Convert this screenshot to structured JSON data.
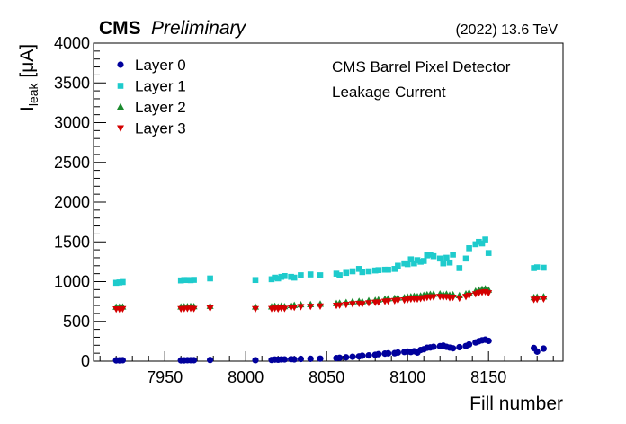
{
  "header": {
    "experiment": "CMS",
    "status": "Preliminary",
    "energy": "(2022) 13.6 TeV"
  },
  "annotations": {
    "line1": "CMS Barrel Pixel Detector",
    "line2": "Leakage Current"
  },
  "colors": {
    "layer0": "#00009c",
    "layer1": "#1ecbcc",
    "layer2": "#1b8a2e",
    "layer3": "#d40000"
  },
  "chart_data": {
    "type": "scatter",
    "xlabel": "Fill number",
    "ylabel_main": "I",
    "ylabel_sub": "leak",
    "ylabel_unit": " [μA]",
    "xlim": [
      7906,
      8196
    ],
    "ylim": [
      0,
      4000
    ],
    "xticks": [
      7950,
      8000,
      8050,
      8100,
      8150
    ],
    "yticks": [
      0,
      500,
      1000,
      1500,
      2000,
      2500,
      3000,
      3500,
      4000
    ],
    "legend_position": "top-left",
    "series": [
      {
        "name": "Layer 0",
        "marker": "circle",
        "points": [
          [
            7920,
            10
          ],
          [
            7922,
            10
          ],
          [
            7924,
            12
          ],
          [
            7960,
            10
          ],
          [
            7962,
            10
          ],
          [
            7964,
            12
          ],
          [
            7966,
            12
          ],
          [
            7968,
            12
          ],
          [
            7978,
            14
          ],
          [
            8006,
            12
          ],
          [
            8016,
            15
          ],
          [
            8018,
            20
          ],
          [
            8020,
            18
          ],
          [
            8022,
            22
          ],
          [
            8024,
            22
          ],
          [
            8028,
            25
          ],
          [
            8030,
            22
          ],
          [
            8034,
            28
          ],
          [
            8040,
            30
          ],
          [
            8046,
            32
          ],
          [
            8056,
            38
          ],
          [
            8058,
            42
          ],
          [
            8062,
            48
          ],
          [
            8066,
            55
          ],
          [
            8070,
            60
          ],
          [
            8072,
            68
          ],
          [
            8076,
            72
          ],
          [
            8080,
            80
          ],
          [
            8082,
            88
          ],
          [
            8086,
            95
          ],
          [
            8088,
            98
          ],
          [
            8092,
            100
          ],
          [
            8094,
            108
          ],
          [
            8098,
            115
          ],
          [
            8100,
            120
          ],
          [
            8102,
            115
          ],
          [
            8104,
            125
          ],
          [
            8106,
            108
          ],
          [
            8108,
            140
          ],
          [
            8110,
            150
          ],
          [
            8112,
            168
          ],
          [
            8114,
            172
          ],
          [
            8116,
            180
          ],
          [
            8120,
            188
          ],
          [
            8122,
            195
          ],
          [
            8124,
            180
          ],
          [
            8126,
            170
          ],
          [
            8128,
            162
          ],
          [
            8132,
            175
          ],
          [
            8136,
            190
          ],
          [
            8138,
            210
          ],
          [
            8142,
            235
          ],
          [
            8144,
            250
          ],
          [
            8146,
            262
          ],
          [
            8148,
            270
          ],
          [
            8150,
            255
          ],
          [
            8178,
            165
          ],
          [
            8180,
            120
          ],
          [
            8184,
            158
          ]
        ]
      },
      {
        "name": "Layer 1",
        "marker": "square",
        "points": [
          [
            7920,
            985
          ],
          [
            7922,
            990
          ],
          [
            7924,
            995
          ],
          [
            7960,
            1015
          ],
          [
            7962,
            1020
          ],
          [
            7964,
            1020
          ],
          [
            7966,
            1018
          ],
          [
            7968,
            1022
          ],
          [
            7978,
            1040
          ],
          [
            8006,
            1020
          ],
          [
            8016,
            1030
          ],
          [
            8018,
            1050
          ],
          [
            8020,
            1040
          ],
          [
            8022,
            1060
          ],
          [
            8024,
            1070
          ],
          [
            8028,
            1060
          ],
          [
            8030,
            1050
          ],
          [
            8034,
            1080
          ],
          [
            8040,
            1090
          ],
          [
            8046,
            1080
          ],
          [
            8056,
            1100
          ],
          [
            8058,
            1080
          ],
          [
            8062,
            1110
          ],
          [
            8066,
            1130
          ],
          [
            8070,
            1160
          ],
          [
            8072,
            1120
          ],
          [
            8076,
            1130
          ],
          [
            8080,
            1140
          ],
          [
            8082,
            1145
          ],
          [
            8086,
            1150
          ],
          [
            8088,
            1150
          ],
          [
            8092,
            1160
          ],
          [
            8094,
            1200
          ],
          [
            8098,
            1230
          ],
          [
            8100,
            1220
          ],
          [
            8102,
            1280
          ],
          [
            8104,
            1230
          ],
          [
            8106,
            1270
          ],
          [
            8108,
            1250
          ],
          [
            8110,
            1260
          ],
          [
            8112,
            1330
          ],
          [
            8114,
            1340
          ],
          [
            8116,
            1320
          ],
          [
            8120,
            1290
          ],
          [
            8122,
            1230
          ],
          [
            8124,
            1300
          ],
          [
            8126,
            1240
          ],
          [
            8128,
            1340
          ],
          [
            8132,
            1170
          ],
          [
            8136,
            1290
          ],
          [
            8138,
            1420
          ],
          [
            8142,
            1470
          ],
          [
            8144,
            1500
          ],
          [
            8146,
            1480
          ],
          [
            8148,
            1530
          ],
          [
            8150,
            1360
          ],
          [
            8178,
            1170
          ],
          [
            8180,
            1180
          ],
          [
            8184,
            1175
          ]
        ]
      },
      {
        "name": "Layer 2",
        "marker": "triangle-up",
        "points": [
          [
            7920,
            680
          ],
          [
            7922,
            680
          ],
          [
            7924,
            682
          ],
          [
            7960,
            682
          ],
          [
            7962,
            684
          ],
          [
            7964,
            686
          ],
          [
            7966,
            688
          ],
          [
            7968,
            686
          ],
          [
            7978,
            690
          ],
          [
            8006,
            682
          ],
          [
            8016,
            684
          ],
          [
            8018,
            690
          ],
          [
            8020,
            682
          ],
          [
            8022,
            692
          ],
          [
            8024,
            686
          ],
          [
            8028,
            700
          ],
          [
            8030,
            702
          ],
          [
            8034,
            710
          ],
          [
            8040,
            712
          ],
          [
            8046,
            718
          ],
          [
            8056,
            725
          ],
          [
            8058,
            730
          ],
          [
            8062,
            738
          ],
          [
            8066,
            748
          ],
          [
            8070,
            752
          ],
          [
            8072,
            748
          ],
          [
            8076,
            760
          ],
          [
            8080,
            765
          ],
          [
            8082,
            770
          ],
          [
            8086,
            780
          ],
          [
            8088,
            785
          ],
          [
            8092,
            790
          ],
          [
            8094,
            795
          ],
          [
            8098,
            798
          ],
          [
            8100,
            805
          ],
          [
            8102,
            810
          ],
          [
            8104,
            815
          ],
          [
            8106,
            812
          ],
          [
            8108,
            820
          ],
          [
            8110,
            828
          ],
          [
            8112,
            835
          ],
          [
            8114,
            840
          ],
          [
            8116,
            842
          ],
          [
            8120,
            845
          ],
          [
            8122,
            838
          ],
          [
            8124,
            842
          ],
          [
            8126,
            830
          ],
          [
            8128,
            835
          ],
          [
            8132,
            825
          ],
          [
            8136,
            845
          ],
          [
            8138,
            860
          ],
          [
            8142,
            880
          ],
          [
            8144,
            895
          ],
          [
            8146,
            905
          ],
          [
            8148,
            910
          ],
          [
            8150,
            895
          ],
          [
            8178,
            800
          ],
          [
            8180,
            805
          ],
          [
            8184,
            810
          ]
        ]
      },
      {
        "name": "Layer 3",
        "marker": "triangle-down",
        "points": [
          [
            7920,
            655
          ],
          [
            7922,
            655
          ],
          [
            7924,
            658
          ],
          [
            7960,
            658
          ],
          [
            7962,
            660
          ],
          [
            7964,
            662
          ],
          [
            7966,
            664
          ],
          [
            7968,
            660
          ],
          [
            7978,
            666
          ],
          [
            8006,
            658
          ],
          [
            8016,
            660
          ],
          [
            8018,
            665
          ],
          [
            8020,
            658
          ],
          [
            8022,
            668
          ],
          [
            8024,
            662
          ],
          [
            8028,
            675
          ],
          [
            8030,
            678
          ],
          [
            8034,
            685
          ],
          [
            8040,
            688
          ],
          [
            8046,
            692
          ],
          [
            8056,
            700
          ],
          [
            8058,
            704
          ],
          [
            8062,
            712
          ],
          [
            8066,
            720
          ],
          [
            8070,
            725
          ],
          [
            8072,
            720
          ],
          [
            8076,
            732
          ],
          [
            8080,
            738
          ],
          [
            8082,
            742
          ],
          [
            8086,
            752
          ],
          [
            8088,
            756
          ],
          [
            8092,
            760
          ],
          [
            8094,
            765
          ],
          [
            8098,
            768
          ],
          [
            8100,
            775
          ],
          [
            8102,
            780
          ],
          [
            8104,
            784
          ],
          [
            8106,
            780
          ],
          [
            8108,
            788
          ],
          [
            8110,
            795
          ],
          [
            8112,
            802
          ],
          [
            8114,
            806
          ],
          [
            8116,
            808
          ],
          [
            8120,
            812
          ],
          [
            8122,
            805
          ],
          [
            8124,
            810
          ],
          [
            8126,
            798
          ],
          [
            8128,
            802
          ],
          [
            8132,
            792
          ],
          [
            8136,
            812
          ],
          [
            8138,
            826
          ],
          [
            8142,
            845
          ],
          [
            8144,
            858
          ],
          [
            8146,
            866
          ],
          [
            8148,
            872
          ],
          [
            8150,
            858
          ],
          [
            8178,
            775
          ],
          [
            8180,
            778
          ],
          [
            8184,
            782
          ]
        ]
      }
    ]
  }
}
